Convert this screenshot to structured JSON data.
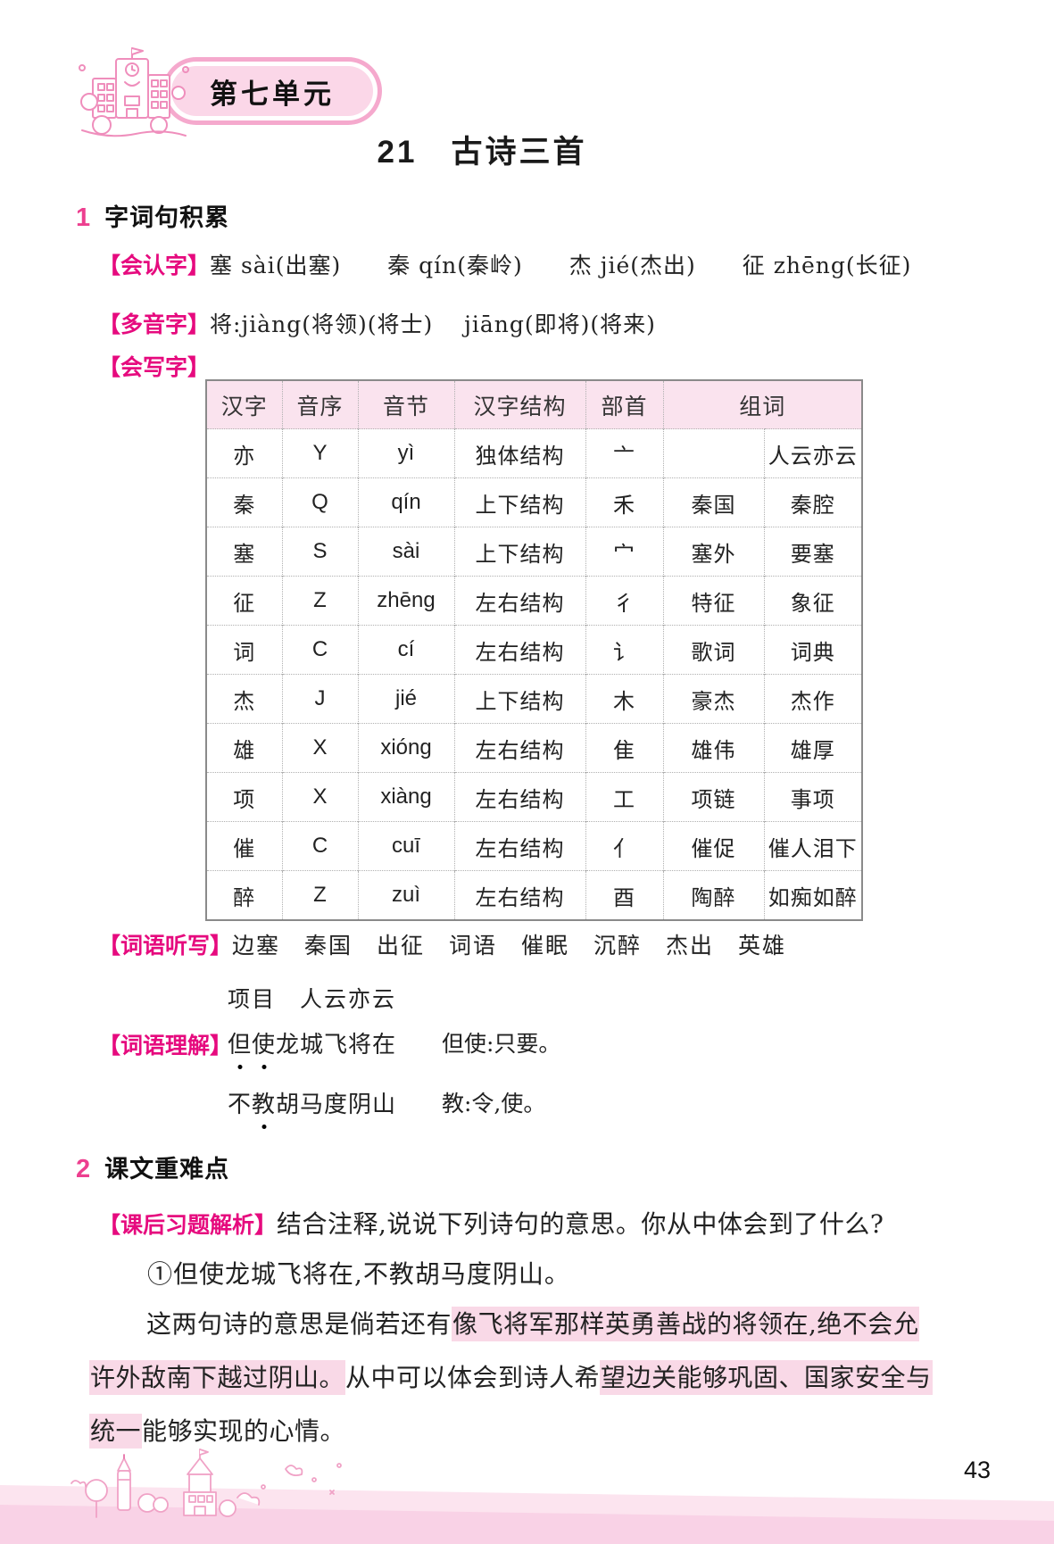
{
  "header": {
    "unit_badge": "第七单元",
    "title": "21　古诗三首"
  },
  "section1": {
    "num": "1",
    "title": "字词句积累"
  },
  "recognize": {
    "label": "【会认字】",
    "content": "塞 sài(出塞)　　秦 qín(秦岭)　　杰 jié(杰出)　　征 zhēng(长征)"
  },
  "polyphone": {
    "label": "【多音字】",
    "content": "将:jiàng(将领)(将士)　 jiāng(即将)(将来)"
  },
  "write_table": {
    "label": "【会写字】",
    "headers": [
      "汉字",
      "音序",
      "音节",
      "汉字结构",
      "部首",
      "组词"
    ],
    "rows": [
      {
        "hanzi": "亦",
        "yinxu": "Y",
        "yinjie": "yì",
        "jiegou": "独体结构",
        "bushou": "亠",
        "zuci1": "",
        "zuci2": "人云亦云"
      },
      {
        "hanzi": "秦",
        "yinxu": "Q",
        "yinjie": "qín",
        "jiegou": "上下结构",
        "bushou": "禾",
        "zuci1": "秦国",
        "zuci2": "秦腔"
      },
      {
        "hanzi": "塞",
        "yinxu": "S",
        "yinjie": "sài",
        "jiegou": "上下结构",
        "bushou": "宀",
        "zuci1": "塞外",
        "zuci2": "要塞"
      },
      {
        "hanzi": "征",
        "yinxu": "Z",
        "yinjie": "zhēng",
        "jiegou": "左右结构",
        "bushou": "彳",
        "zuci1": "特征",
        "zuci2": "象征"
      },
      {
        "hanzi": "词",
        "yinxu": "C",
        "yinjie": "cí",
        "jiegou": "左右结构",
        "bushou": "讠",
        "zuci1": "歌词",
        "zuci2": "词典"
      },
      {
        "hanzi": "杰",
        "yinxu": "J",
        "yinjie": "jié",
        "jiegou": "上下结构",
        "bushou": "木",
        "zuci1": "豪杰",
        "zuci2": "杰作"
      },
      {
        "hanzi": "雄",
        "yinxu": "X",
        "yinjie": "xióng",
        "jiegou": "左右结构",
        "bushou": "隹",
        "zuci1": "雄伟",
        "zuci2": "雄厚"
      },
      {
        "hanzi": "项",
        "yinxu": "X",
        "yinjie": "xiàng",
        "jiegou": "左右结构",
        "bushou": "工",
        "zuci1": "项链",
        "zuci2": "事项"
      },
      {
        "hanzi": "催",
        "yinxu": "C",
        "yinjie": "cuī",
        "jiegou": "左右结构",
        "bushou": "亻",
        "zuci1": "催促",
        "zuci2": "催人泪下"
      },
      {
        "hanzi": "醉",
        "yinxu": "Z",
        "yinjie": "zuì",
        "jiegou": "左右结构",
        "bushou": "酉",
        "zuci1": "陶醉",
        "zuci2": "如痴如醉"
      }
    ]
  },
  "dictation": {
    "label": "【词语听写】",
    "line1": "边塞　秦国　出征　词语　催眠　沉醉　杰出　英雄",
    "line2": "项目　人云亦云"
  },
  "comprehension": {
    "label": "【词语理解】",
    "items": [
      {
        "quote_segments": [
          {
            "text": "但使",
            "emph": true
          },
          {
            "text": "龙城飞将在",
            "emph": false
          }
        ],
        "explanation": "但使:只要。"
      },
      {
        "quote_segments": [
          {
            "text": "不",
            "emph": false
          },
          {
            "text": "教",
            "emph": true
          },
          {
            "text": "胡马度阴山",
            "emph": false
          }
        ],
        "explanation": "教:令,使。"
      }
    ]
  },
  "section2": {
    "num": "2",
    "title": "课文重难点"
  },
  "analysis": {
    "label": "【课后习题解析】",
    "question": "结合注释,说说下列诗句的意思。你从中体会到了什么?",
    "item1": "①但使龙城飞将在,不教胡马度阴山。",
    "answer_lines": [
      [
        {
          "text": "这两句诗的意思是倘若还有",
          "hl": false
        },
        {
          "text": "像飞将军那样英勇善战的将领在,绝不会允",
          "hl": true
        }
      ],
      [
        {
          "text": "许外敌南下越过阴山。",
          "hl": true
        },
        {
          "text": "从中可以体会到诗人希",
          "hl": false
        },
        {
          "text": "望边关能够巩固、国家安全与",
          "hl": true
        }
      ],
      [
        {
          "text": "统一",
          "hl": true
        },
        {
          "text": "能够实现的心情。",
          "hl": false
        }
      ]
    ]
  },
  "page": {
    "number": "43"
  },
  "colors": {
    "accent_pink": "#e60a7e",
    "pill_fill": "#fbd7e8",
    "pill_ring": "#f5a9cd",
    "table_header_bg": "#fae3ee",
    "highlight": "#f9d9e7",
    "footer_band1": "#fce4ef",
    "footer_band2": "#f9d2e6"
  }
}
